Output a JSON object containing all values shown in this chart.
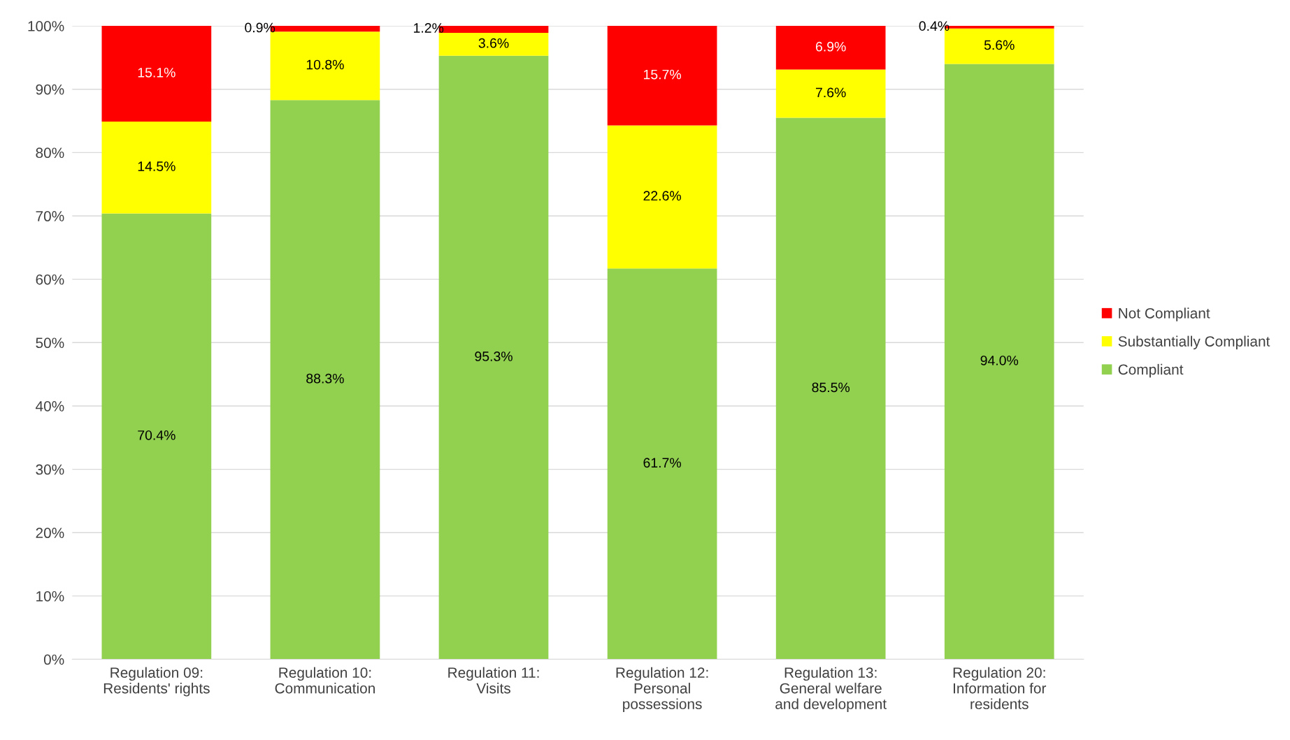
{
  "chart_data": {
    "type": "bar",
    "stacked": true,
    "categories": [
      "Regulation 09:\nResidents' rights",
      "Regulation 10:\nCommunication",
      "Regulation 11:\nVisits",
      "Regulation 12:\nPersonal\npossessions",
      "Regulation 13:\nGeneral welfare\nand development",
      "Regulation 20:\nInformation for\nresidents"
    ],
    "series": [
      {
        "name": "Compliant",
        "color": "#92d050",
        "values": [
          70.4,
          88.3,
          95.3,
          61.7,
          85.5,
          94.0
        ],
        "value_labels": [
          "70.4%",
          "88.3%",
          "95.3%",
          "61.7%",
          "85.5%",
          "94.0%"
        ]
      },
      {
        "name": "Substantially Compliant",
        "color": "#ffff00",
        "values": [
          14.5,
          10.8,
          3.6,
          22.6,
          7.6,
          5.6
        ],
        "value_labels": [
          "14.5%",
          "10.8%",
          "3.6%",
          "22.6%",
          "7.6%",
          "5.6%"
        ]
      },
      {
        "name": "Not Compliant",
        "color": "#ff0000",
        "values": [
          15.1,
          0.9,
          1.2,
          15.7,
          6.9,
          0.4
        ],
        "value_labels": [
          "15.1%",
          "0.9%",
          "1.2%",
          "15.7%",
          "6.9%",
          "0.4%"
        ]
      }
    ],
    "ylim": [
      0,
      100
    ],
    "yticks": [
      {
        "value": 0,
        "label": "0%"
      },
      {
        "value": 10,
        "label": "10%"
      },
      {
        "value": 20,
        "label": "20%"
      },
      {
        "value": 30,
        "label": "30%"
      },
      {
        "value": 40,
        "label": "40%"
      },
      {
        "value": 50,
        "label": "50%"
      },
      {
        "value": 60,
        "label": "60%"
      },
      {
        "value": 70,
        "label": "70%"
      },
      {
        "value": 80,
        "label": "80%"
      },
      {
        "value": 90,
        "label": "90%"
      },
      {
        "value": 100,
        "label": "100%"
      }
    ],
    "grid": "y",
    "legend": "right"
  }
}
